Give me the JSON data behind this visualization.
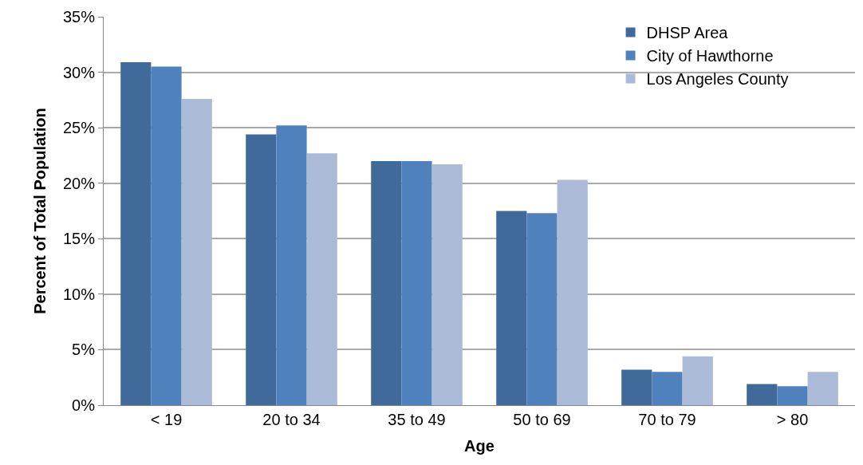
{
  "chart_data": {
    "type": "bar",
    "xlabel": "Age",
    "ylabel": "Percent of Total Population",
    "categories": [
      "< 19",
      "20 to 34",
      "35 to 49",
      "50 to 69",
      "70 to 79",
      "> 80"
    ],
    "series": [
      {
        "name": "DHSP Area",
        "color": "#406a9a",
        "values": [
          30.9,
          24.4,
          22.0,
          17.5,
          3.2,
          1.9
        ]
      },
      {
        "name": "City of Hawthorne",
        "color": "#4f81bc",
        "values": [
          30.5,
          25.2,
          22.0,
          17.3,
          3.0,
          1.7
        ]
      },
      {
        "name": "Los Angeles County",
        "color": "#abbad7",
        "values": [
          27.6,
          22.7,
          21.7,
          20.3,
          4.4,
          3.0
        ]
      }
    ],
    "ylim": [
      0,
      35
    ],
    "yticks": [
      {
        "value": 0,
        "label": "0%"
      },
      {
        "value": 5,
        "label": "5%"
      },
      {
        "value": 10,
        "label": "10%"
      },
      {
        "value": 15,
        "label": "15%"
      },
      {
        "value": 20,
        "label": "20%"
      },
      {
        "value": 25,
        "label": "25%"
      },
      {
        "value": 30,
        "label": "30%"
      },
      {
        "value": 35,
        "label": "35%"
      }
    ],
    "grid": "y",
    "legend": "top right"
  }
}
